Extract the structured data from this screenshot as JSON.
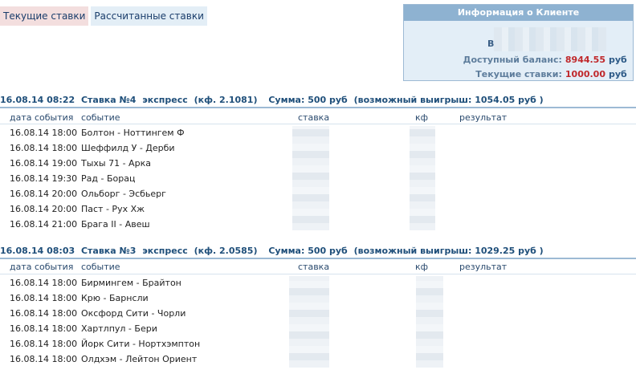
{
  "tabs": [
    {
      "label": "Текущие ставки",
      "active": true
    },
    {
      "label": "Рассчитанные ставки",
      "active": false
    }
  ],
  "client_info": {
    "title": "Информация о Клиенте",
    "login_prefix": "В",
    "balance_label": "Доступный баланс:",
    "balance_value": "8944.55",
    "current_bets_label": "Текущие ставки:",
    "current_bets_value": "1000.00",
    "currency": "руб"
  },
  "columns": {
    "date": "дата события",
    "event": "событие",
    "bet": "ставка",
    "coef": "кф",
    "result": "результат"
  },
  "bets": [
    {
      "date_time": "16.08.14 08:22",
      "title": "Ставка №4",
      "type": "экспресс",
      "coef_text": "(кф. 2.1081)",
      "sum_text": "Сумма: 500 руб",
      "win_text": "(возможный выигрыш: 1054.05 руб )",
      "events": [
        {
          "date": "16.08.14 18:00",
          "event": "Болтон - Ноттингем Ф"
        },
        {
          "date": "16.08.14 18:00",
          "event": "Шеффилд У - Дерби"
        },
        {
          "date": "16.08.14 19:00",
          "event": "Тыхы 71 - Арка"
        },
        {
          "date": "16.08.14 19:30",
          "event": "Рад - Борац"
        },
        {
          "date": "16.08.14 20:00",
          "event": "Ольборг - Эсбьерг"
        },
        {
          "date": "16.08.14 20:00",
          "event": "Паст - Рух Хж"
        },
        {
          "date": "16.08.14 21:00",
          "event": "Брага II - Авеш"
        }
      ]
    },
    {
      "date_time": "16.08.14 08:03",
      "title": "Ставка №3",
      "type": "экспресс",
      "coef_text": "(кф. 2.0585)",
      "sum_text": "Сумма: 500 руб",
      "win_text": "(возможный выигрыш: 1029.25 руб )",
      "events": [
        {
          "date": "16.08.14 18:00",
          "event": "Бирмингем - Брайтон"
        },
        {
          "date": "16.08.14 18:00",
          "event": "Крю - Барнсли"
        },
        {
          "date": "16.08.14 18:00",
          "event": "Оксфорд Сити - Чорли"
        },
        {
          "date": "16.08.14 18:00",
          "event": "Хартлпул - Бери"
        },
        {
          "date": "16.08.14 18:00",
          "event": "Йорк Сити - Нортхэмптон"
        },
        {
          "date": "16.08.14 18:00",
          "event": "Олдхэм - Лейтон Ориент"
        }
      ]
    }
  ]
}
